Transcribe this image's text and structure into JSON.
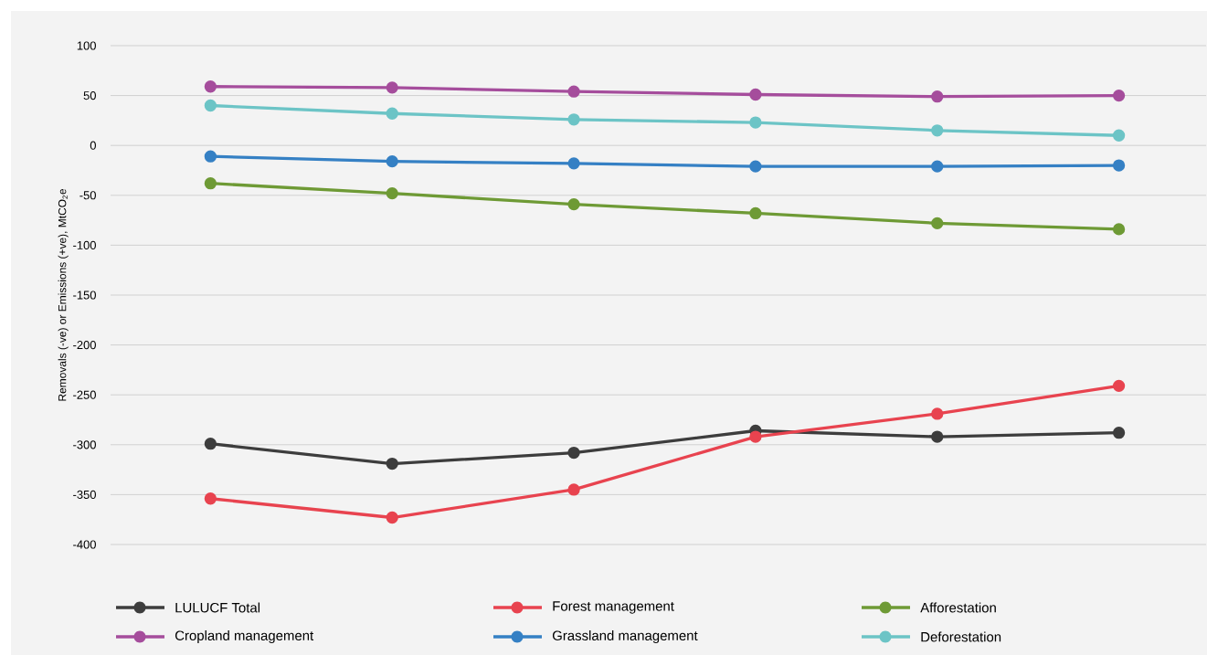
{
  "chart_data": {
    "type": "line",
    "ylabel": "Removals (-ve) or Emissions (+ve), MtCO$_{2}$e",
    "categories": [
      null,
      null,
      null,
      null,
      null,
      null
    ],
    "series": [
      {
        "name": "LULUCF Total",
        "color": "#3d3d3d",
        "values": [
          -299,
          -319,
          -308,
          -286,
          -292,
          -288
        ]
      },
      {
        "name": "Forest management",
        "color": "#e8434f",
        "values": [
          -354,
          -373,
          -345,
          -292,
          -269,
          -241
        ]
      },
      {
        "name": "Afforestation",
        "color": "#6e9a35",
        "values": [
          -38,
          -48,
          -59,
          -68,
          -78,
          -84
        ]
      },
      {
        "name": "Cropland management",
        "color": "#a54d9c",
        "values": [
          59,
          58,
          54,
          51,
          49,
          50
        ]
      },
      {
        "name": "Grassland management",
        "color": "#3580c4",
        "values": [
          -11,
          -16,
          -18,
          -21,
          -21,
          -20
        ]
      },
      {
        "name": "Deforestation",
        "color": "#6cc4c6",
        "values": [
          40,
          32,
          26,
          23,
          15,
          10
        ]
      }
    ],
    "ylim": [
      -400,
      100
    ],
    "yticks": [
      -400,
      -350,
      -300,
      -250,
      -200,
      -150,
      -100,
      -50,
      0,
      50,
      100
    ],
    "grid": "y",
    "legend": "bottom",
    "tick_labels": "y",
    "marker": "circle",
    "line_style": "solid"
  }
}
